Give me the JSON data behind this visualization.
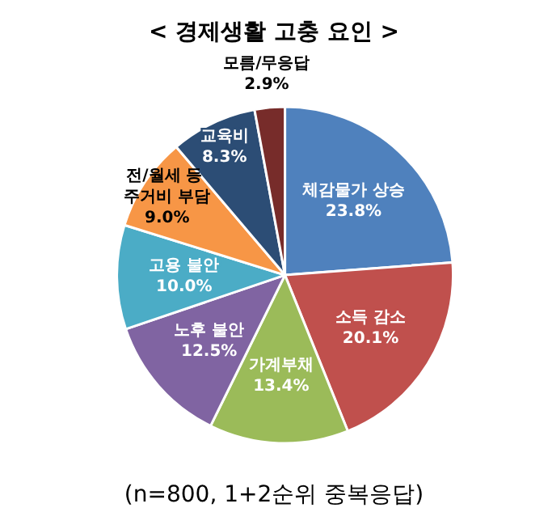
{
  "chart_data": {
    "type": "pie",
    "title": "< 경제생활 고충 요인 >",
    "categories": [
      "체감물가 상승",
      "소득 감소",
      "가계부채",
      "노후 불안",
      "고용 불안",
      "전/월세 등 주거비 부담",
      "교육비",
      "모름/무응답"
    ],
    "values": [
      23.8,
      20.1,
      13.4,
      12.5,
      10.0,
      9.0,
      8.3,
      2.9
    ],
    "value_labels": [
      "23.8%",
      "20.1%",
      "13.4%",
      "12.5%",
      "10.0%",
      "9.0%",
      "8.3%",
      "2.9%"
    ],
    "colors": [
      "#4f81bd",
      "#c0504d",
      "#9bbb59",
      "#8064a2",
      "#4bacc6",
      "#f79646",
      "#2c4d75",
      "#772c2a"
    ],
    "annotations": [
      "(n=800, 1+2순위 중복응답)"
    ],
    "legend": false
  }
}
